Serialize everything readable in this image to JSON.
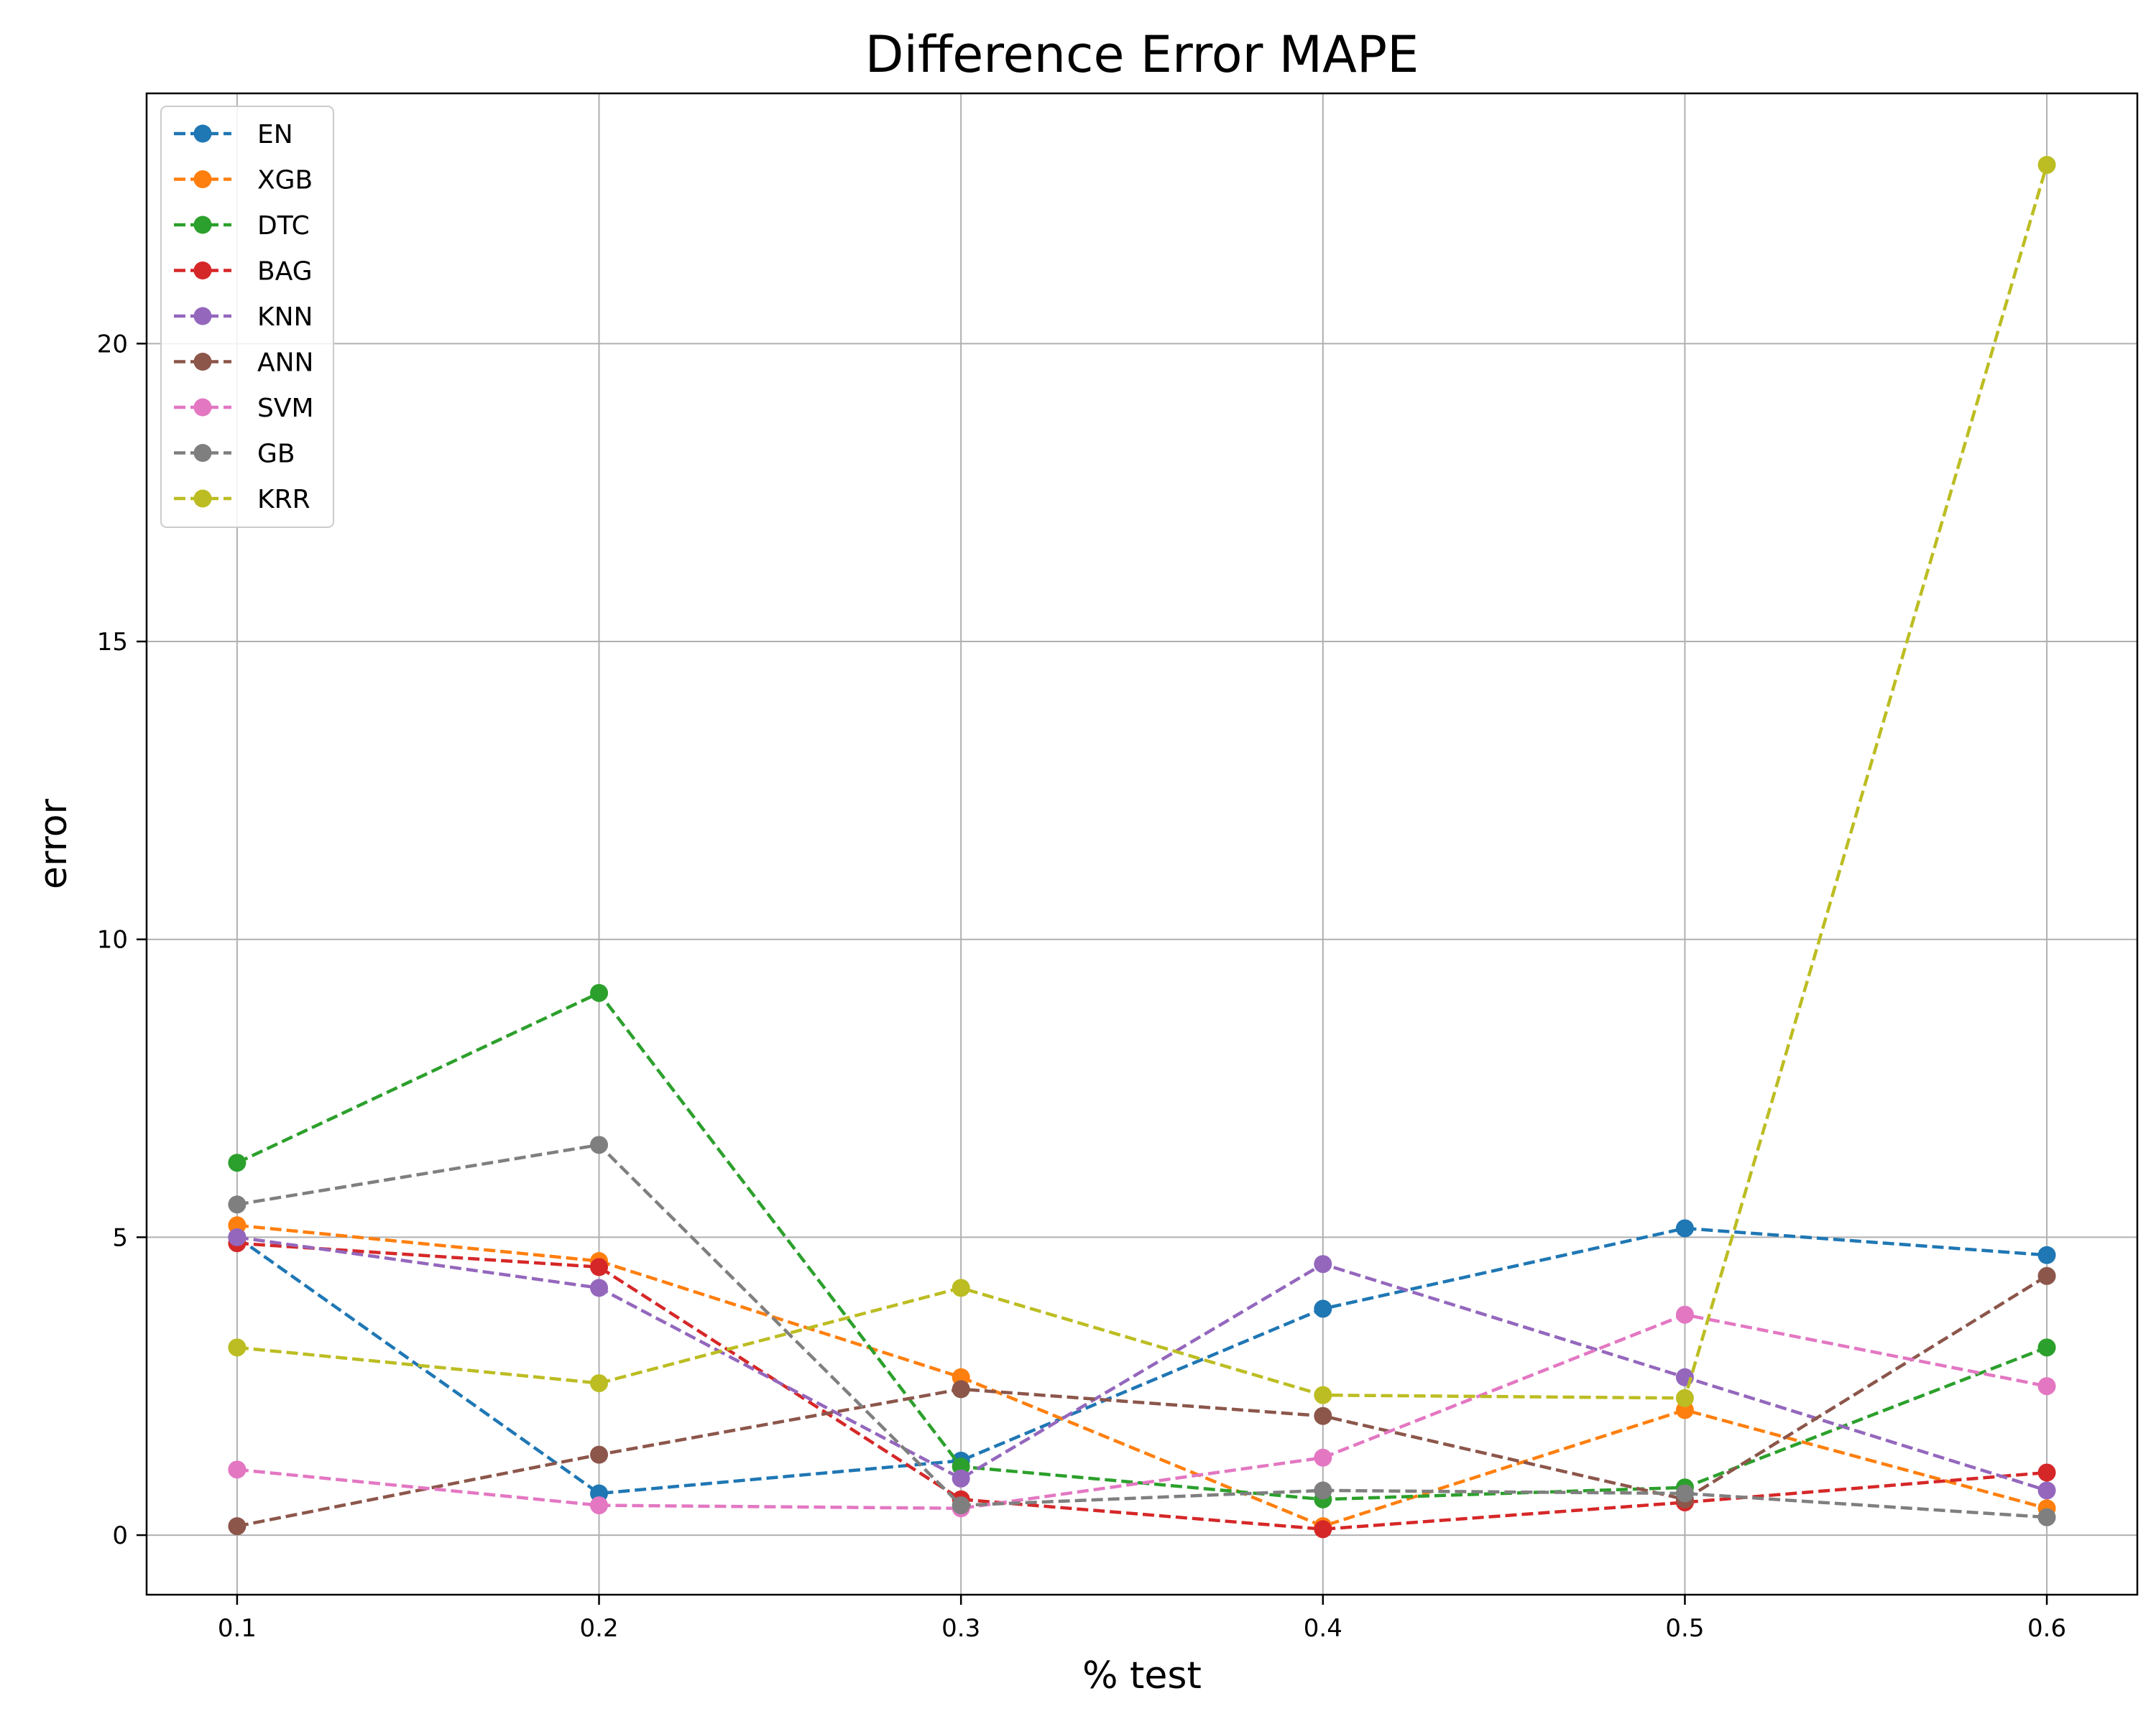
{
  "chart_data": {
    "type": "line",
    "title": "Difference Error MAPE",
    "xlabel": "% test",
    "ylabel": "error",
    "x": [
      0.1,
      0.2,
      0.3,
      0.4,
      0.5,
      0.6
    ],
    "x_tick_labels": [
      "0.1",
      "0.2",
      "0.3",
      "0.4",
      "0.5",
      "0.6"
    ],
    "y_ticks": [
      0,
      5,
      10,
      15,
      20
    ],
    "y_tick_labels": [
      "0",
      "5",
      "10",
      "15",
      "20"
    ],
    "xlim": [
      0.075,
      0.625
    ],
    "ylim": [
      -1.0,
      24.2
    ],
    "grid": true,
    "legend_position": "top-left",
    "line_style": "dashed",
    "marker": "circle",
    "series": [
      {
        "name": "EN",
        "color": "#1f77b4",
        "values": [
          5.0,
          0.7,
          1.25,
          3.8,
          5.15,
          4.7
        ]
      },
      {
        "name": "XGB",
        "color": "#ff7f0e",
        "values": [
          5.2,
          4.6,
          2.65,
          0.15,
          2.1,
          0.45
        ]
      },
      {
        "name": "DTC",
        "color": "#2ca02c",
        "values": [
          6.25,
          9.1,
          1.15,
          0.6,
          0.8,
          3.15
        ]
      },
      {
        "name": "BAG",
        "color": "#d62728",
        "values": [
          4.9,
          4.5,
          0.6,
          0.1,
          0.55,
          1.05
        ]
      },
      {
        "name": "KNN",
        "color": "#9467bd",
        "values": [
          5.0,
          4.15,
          0.95,
          4.55,
          2.65,
          0.75
        ]
      },
      {
        "name": "ANN",
        "color": "#8c564b",
        "values": [
          0.15,
          1.35,
          2.45,
          2.0,
          0.6,
          4.35
        ]
      },
      {
        "name": "SVM",
        "color": "#e377c2",
        "values": [
          1.1,
          0.5,
          0.45,
          1.3,
          3.7,
          2.5
        ]
      },
      {
        "name": "GB",
        "color": "#7f7f7f",
        "values": [
          5.55,
          6.55,
          0.5,
          0.75,
          0.7,
          0.3
        ]
      },
      {
        "name": "KRR",
        "color": "#bcbd22",
        "values": [
          3.15,
          2.55,
          4.15,
          2.35,
          2.3,
          23.0
        ]
      }
    ]
  }
}
